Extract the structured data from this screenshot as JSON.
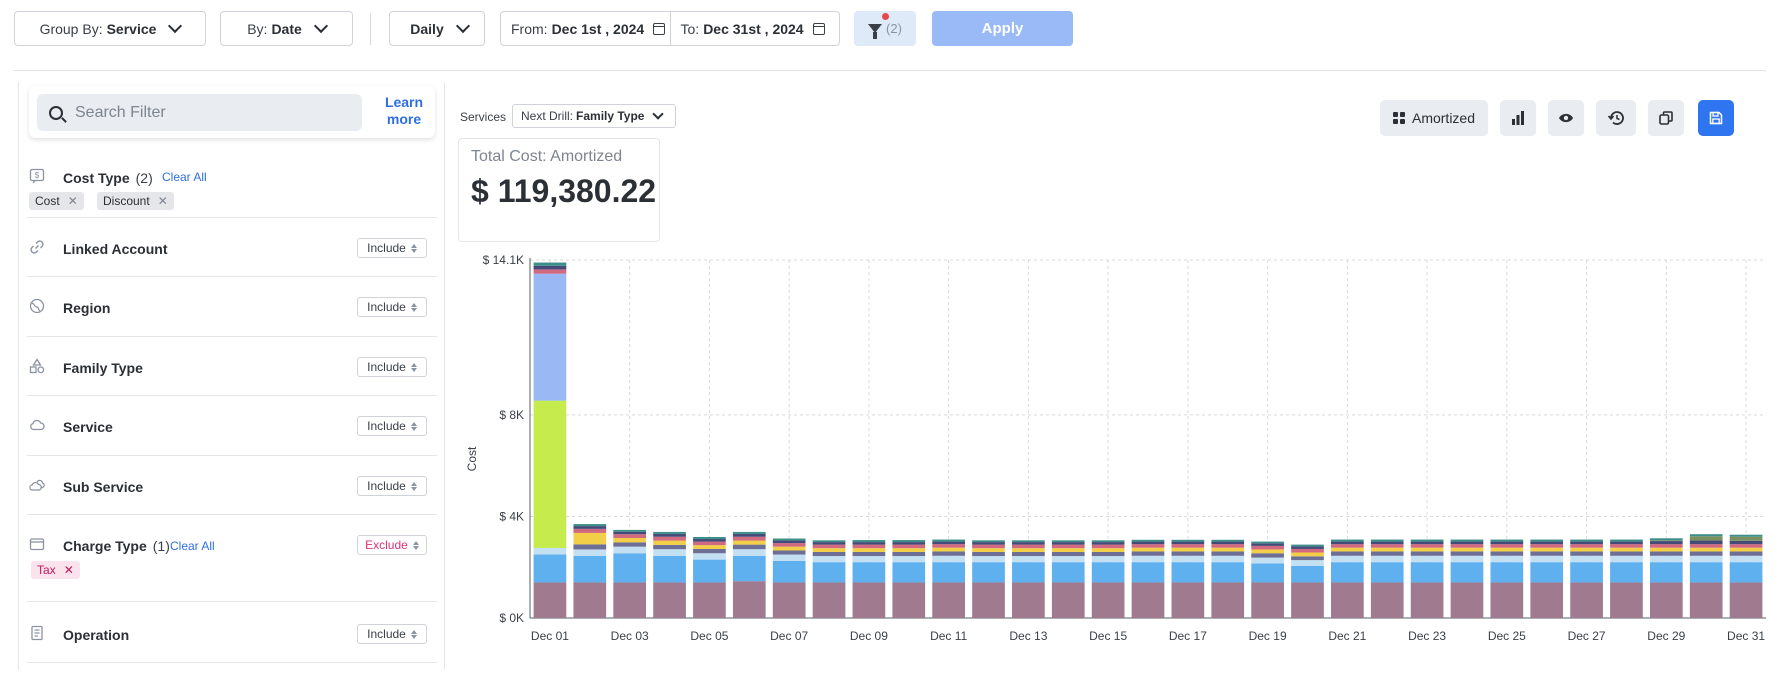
{
  "toolbar": {
    "group_by_prefix": "Group By:",
    "group_by_value": "Service",
    "by_prefix": "By:",
    "by_value": "Date",
    "granularity": "Daily",
    "from_prefix": "From:",
    "from_value": "Dec 1st , 2024",
    "to_prefix": "To:",
    "to_value": "Dec 31st , 2024",
    "filter_count": "(2)",
    "apply_label": "Apply"
  },
  "sidebar": {
    "search_placeholder": "Search Filter",
    "learn_more": "Learn more",
    "cost_type": {
      "label": "Cost Type",
      "count": "(2)",
      "clear": "Clear All",
      "chips": [
        "Cost",
        "Discount"
      ]
    },
    "filters": [
      {
        "label": "Linked Account",
        "mode": "Include"
      },
      {
        "label": "Region",
        "mode": "Include"
      },
      {
        "label": "Family Type",
        "mode": "Include"
      },
      {
        "label": "Service",
        "mode": "Include"
      },
      {
        "label": "Sub Service",
        "mode": "Include"
      }
    ],
    "charge_type": {
      "label": "Charge Type",
      "count": "(1)",
      "clear": "Clear All",
      "mode": "Exclude",
      "chips": [
        "Tax"
      ]
    },
    "operation": {
      "label": "Operation",
      "mode": "Include"
    }
  },
  "main": {
    "services_label": "Services",
    "next_drill_prefix": "Next Drill:",
    "next_drill_value": "Family Type",
    "total_label": "Total Cost: Amortized",
    "total_value": "$ 119,380.22",
    "amortized_label": "Amortized"
  },
  "chart_data": {
    "type": "bar",
    "stacked": true,
    "ylabel": "Cost",
    "y_ticks": [
      "$ 0K",
      "$ 4K",
      "$ 8K",
      "$ 14.1K"
    ],
    "y_tick_values": [
      0,
      4000,
      8000,
      14100
    ],
    "ylim": [
      0,
      14100
    ],
    "x_tick_labels": [
      "Dec 01",
      "Dec 03",
      "Dec 05",
      "Dec 07",
      "Dec 09",
      "Dec 11",
      "Dec 13",
      "Dec 15",
      "Dec 17",
      "Dec 19",
      "Dec 21",
      "Dec 23",
      "Dec 25",
      "Dec 27",
      "Dec 29",
      "Dec 31"
    ],
    "categories": [
      "Dec 01",
      "Dec 02",
      "Dec 03",
      "Dec 04",
      "Dec 05",
      "Dec 06",
      "Dec 07",
      "Dec 08",
      "Dec 09",
      "Dec 10",
      "Dec 11",
      "Dec 12",
      "Dec 13",
      "Dec 14",
      "Dec 15",
      "Dec 16",
      "Dec 17",
      "Dec 18",
      "Dec 19",
      "Dec 20",
      "Dec 21",
      "Dec 22",
      "Dec 23",
      "Dec 24",
      "Dec 25",
      "Dec 26",
      "Dec 27",
      "Dec 28",
      "Dec 29",
      "Dec 30",
      "Dec 31"
    ],
    "grid": true,
    "series": [
      {
        "color": "#a07a8f",
        "values": [
          1400,
          1400,
          1400,
          1400,
          1400,
          1450,
          1400,
          1400,
          1400,
          1400,
          1400,
          1400,
          1400,
          1400,
          1400,
          1400,
          1400,
          1400,
          1400,
          1400,
          1400,
          1400,
          1400,
          1400,
          1400,
          1400,
          1400,
          1400,
          1400,
          1400,
          1400
        ]
      },
      {
        "color": "#5fb0ee",
        "values": [
          1100,
          1050,
          1150,
          1050,
          900,
          1000,
          850,
          800,
          800,
          800,
          800,
          800,
          800,
          800,
          800,
          800,
          800,
          800,
          750,
          650,
          800,
          800,
          800,
          800,
          800,
          800,
          800,
          800,
          800,
          800,
          800
        ]
      },
      {
        "color": "#c3dff2",
        "values": [
          260,
          250,
          260,
          260,
          250,
          260,
          250,
          240,
          240,
          240,
          250,
          240,
          240,
          240,
          240,
          250,
          250,
          250,
          230,
          230,
          250,
          250,
          250,
          250,
          250,
          250,
          250,
          250,
          250,
          250,
          250
        ]
      },
      {
        "color": "#6e6f95",
        "values": [
          0,
          200,
          170,
          170,
          170,
          180,
          160,
          160,
          160,
          160,
          170,
          160,
          160,
          160,
          160,
          170,
          170,
          170,
          170,
          150,
          170,
          170,
          170,
          170,
          170,
          170,
          170,
          170,
          170,
          170,
          170
        ]
      },
      {
        "color": "#f2cf47",
        "values": [
          0,
          450,
          170,
          170,
          150,
          160,
          150,
          150,
          150,
          150,
          150,
          150,
          150,
          150,
          150,
          150,
          150,
          150,
          150,
          150,
          150,
          150,
          150,
          150,
          150,
          150,
          150,
          150,
          150,
          150,
          150
        ]
      },
      {
        "color": "#c5eb4d",
        "values": [
          5800,
          0,
          0,
          0,
          0,
          0,
          0,
          0,
          0,
          0,
          0,
          0,
          0,
          0,
          0,
          0,
          0,
          0,
          0,
          0,
          0,
          0,
          0,
          0,
          0,
          0,
          0,
          0,
          0,
          0,
          0
        ]
      },
      {
        "color": "#9ab8f3",
        "values": [
          5000,
          0,
          0,
          0,
          0,
          0,
          0,
          0,
          0,
          0,
          0,
          0,
          0,
          0,
          0,
          0,
          0,
          0,
          0,
          0,
          0,
          0,
          0,
          0,
          0,
          0,
          0,
          0,
          0,
          0,
          0
        ]
      },
      {
        "color": "#d16a80",
        "values": [
          170,
          160,
          150,
          150,
          140,
          150,
          140,
          140,
          140,
          140,
          140,
          140,
          140,
          140,
          140,
          140,
          140,
          140,
          140,
          140,
          140,
          140,
          140,
          140,
          140,
          140,
          140,
          140,
          140,
          140,
          140
        ]
      },
      {
        "color": "#444b78",
        "values": [
          140,
          110,
          100,
          110,
          100,
          110,
          100,
          100,
          100,
          100,
          100,
          100,
          100,
          100,
          100,
          100,
          100,
          100,
          100,
          100,
          100,
          100,
          100,
          100,
          100,
          100,
          100,
          100,
          120,
          140,
          130
        ]
      },
      {
        "color": "#7a9060",
        "values": [
          0,
          0,
          0,
          0,
          0,
          0,
          0,
          0,
          0,
          0,
          0,
          0,
          0,
          0,
          0,
          0,
          0,
          0,
          0,
          0,
          0,
          0,
          0,
          0,
          0,
          0,
          0,
          0,
          30,
          170,
          160
        ]
      },
      {
        "color": "#3e8f8a",
        "values": [
          130,
          80,
          70,
          80,
          80,
          80,
          80,
          70,
          80,
          80,
          80,
          70,
          70,
          70,
          70,
          70,
          70,
          70,
          70,
          70,
          80,
          80,
          80,
          80,
          80,
          80,
          80,
          80,
          80,
          80,
          80
        ]
      }
    ]
  },
  "colors": {
    "accent": "#2f75f0",
    "apply_disabled": "#9ab9f7",
    "exclude": "#d9327a"
  }
}
